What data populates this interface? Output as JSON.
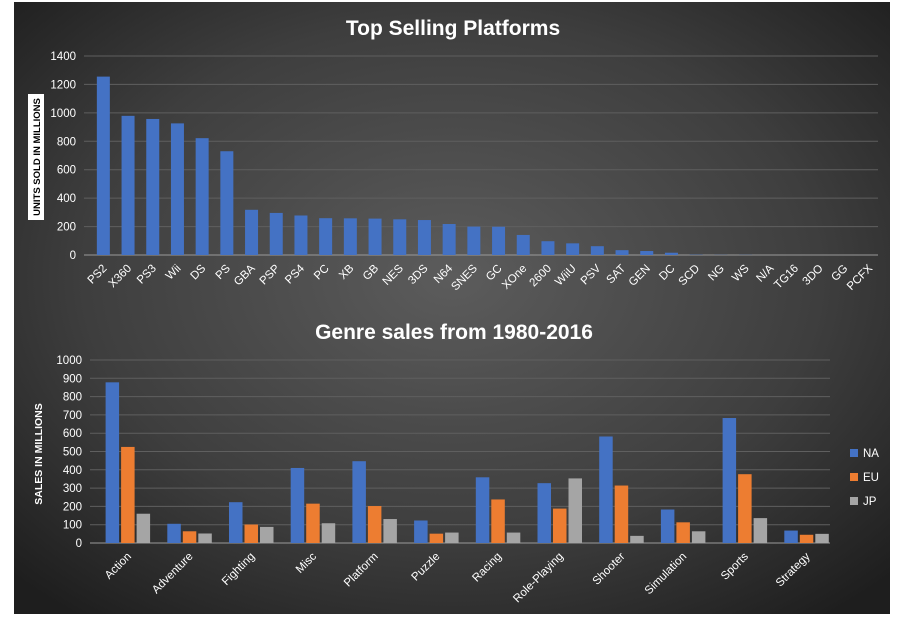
{
  "chart_data": [
    {
      "type": "bar",
      "title": "Top Selling Platforms",
      "xlabel": "",
      "ylabel": "UNITS SOLD IN MILLIONS",
      "ylim": [
        0,
        1400
      ],
      "yticks": [
        0,
        200,
        400,
        600,
        800,
        1000,
        1200,
        1400
      ],
      "grid": true,
      "legend": "none",
      "categories": [
        "PS2",
        "X360",
        "PS3",
        "Wii",
        "DS",
        "PS",
        "GBA",
        "PSP",
        "PS4",
        "PC",
        "XB",
        "GB",
        "NES",
        "3DS",
        "N64",
        "SNES",
        "GC",
        "XOne",
        "2600",
        "WiiU",
        "PSV",
        "SAT",
        "GEN",
        "DC",
        "SCD",
        "NG",
        "WS",
        "N/A",
        "TG16",
        "3DO",
        "GG",
        "PCFX"
      ],
      "series": [
        {
          "color": "#4472C4",
          "values": [
            1255,
            979,
            957,
            926,
            822,
            730,
            318,
            296,
            278,
            259,
            258,
            256,
            251,
            246,
            218,
            200,
            199,
            141,
            97,
            82,
            62,
            34,
            28,
            16,
            2,
            1,
            1,
            0,
            0,
            0,
            0,
            0
          ]
        }
      ]
    },
    {
      "type": "bar",
      "title": "Genre sales from 1980-2016",
      "xlabel": "",
      "ylabel": "SALES IN MILLIONS",
      "ylim": [
        0,
        1000
      ],
      "yticks": [
        0,
        100,
        200,
        300,
        400,
        500,
        600,
        700,
        800,
        900,
        1000
      ],
      "grid": true,
      "legend": "right",
      "categories": [
        "Action",
        "Adventure",
        "Fighting",
        "Misc",
        "Platform",
        "Puzzle",
        "Racing",
        "Role-Playing",
        "Shooter",
        "Simulation",
        "Sports",
        "Strategy"
      ],
      "series": [
        {
          "name": "NA",
          "color": "#4472C4",
          "values": [
            878,
            105,
            223,
            410,
            447,
            123,
            359,
            327,
            582,
            183,
            683,
            68
          ]
        },
        {
          "name": "EU",
          "color": "#ED7D31",
          "values": [
            525,
            64,
            101,
            215,
            202,
            51,
            238,
            188,
            314,
            113,
            376,
            45
          ]
        },
        {
          "name": "JP",
          "color": "#A5A5A5",
          "values": [
            160,
            52,
            88,
            108,
            131,
            57,
            57,
            353,
            39,
            64,
            136,
            50
          ]
        }
      ]
    }
  ]
}
